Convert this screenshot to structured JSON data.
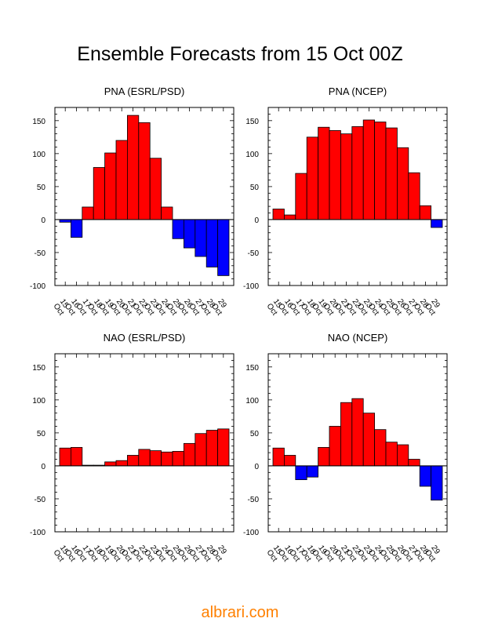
{
  "page_title": "Ensemble Forecasts from 15 Oct 00Z",
  "watermark": {
    "text": "albrari.com",
    "color": "#ff8000"
  },
  "colors": {
    "positive": "#ff0000",
    "negative": "#0000ff",
    "bar_outline": "#000000"
  },
  "chart_data": [
    {
      "type": "bar",
      "title": "PNA (ESRL/PSD)",
      "categories": [
        "15 Oct",
        "16 Oct",
        "17 Oct",
        "18 Oct",
        "19 Oct",
        "20 Oct",
        "21 Oct",
        "22 Oct",
        "23 Oct",
        "24 Oct",
        "25 Oct",
        "26 Oct",
        "27 Oct",
        "28 Oct",
        "29 Oct"
      ],
      "values": [
        -4,
        -27,
        19,
        79,
        101,
        120,
        158,
        147,
        93,
        19,
        -29,
        -43,
        -56,
        -72,
        -85
      ],
      "ylim": [
        -100,
        170
      ],
      "yticks": [
        -100,
        -50,
        0,
        50,
        100,
        150
      ]
    },
    {
      "type": "bar",
      "title": "PNA (NCEP)",
      "categories": [
        "15 Oct",
        "16 Oct",
        "17 Oct",
        "18 Oct",
        "19 Oct",
        "20 Oct",
        "21 Oct",
        "22 Oct",
        "23 Oct",
        "24 Oct",
        "25 Oct",
        "26 Oct",
        "27 Oct",
        "28 Oct",
        "29 Oct"
      ],
      "values": [
        16,
        7,
        70,
        125,
        140,
        135,
        130,
        141,
        151,
        148,
        139,
        109,
        71,
        21,
        -12
      ],
      "ylim": [
        -100,
        170
      ],
      "yticks": [
        -100,
        -50,
        0,
        50,
        100,
        150
      ]
    },
    {
      "type": "bar",
      "title": "NAO (ESRL/PSD)",
      "categories": [
        "15 Oct",
        "16 Oct",
        "17 Oct",
        "18 Oct",
        "19 Oct",
        "20 Oct",
        "21 Oct",
        "22 Oct",
        "23 Oct",
        "24 Oct",
        "25 Oct",
        "26 Oct",
        "27 Oct",
        "28 Oct",
        "29 Oct"
      ],
      "values": [
        27,
        28,
        1,
        1,
        6,
        8,
        16,
        25,
        23,
        21,
        22,
        34,
        49,
        54,
        56
      ],
      "ylim": [
        -100,
        170
      ],
      "yticks": [
        -100,
        -50,
        0,
        50,
        100,
        150
      ]
    },
    {
      "type": "bar",
      "title": "NAO (NCEP)",
      "categories": [
        "15 Oct",
        "16 Oct",
        "17 Oct",
        "18 Oct",
        "19 Oct",
        "20 Oct",
        "21 Oct",
        "22 Oct",
        "23 Oct",
        "24 Oct",
        "25 Oct",
        "26 Oct",
        "27 Oct",
        "28 Oct",
        "29 Oct"
      ],
      "values": [
        27,
        16,
        -21,
        -17,
        28,
        60,
        96,
        102,
        80,
        55,
        36,
        32,
        10,
        -31,
        -52
      ],
      "ylim": [
        -100,
        170
      ],
      "yticks": [
        -100,
        -50,
        0,
        50,
        100,
        150
      ]
    }
  ]
}
